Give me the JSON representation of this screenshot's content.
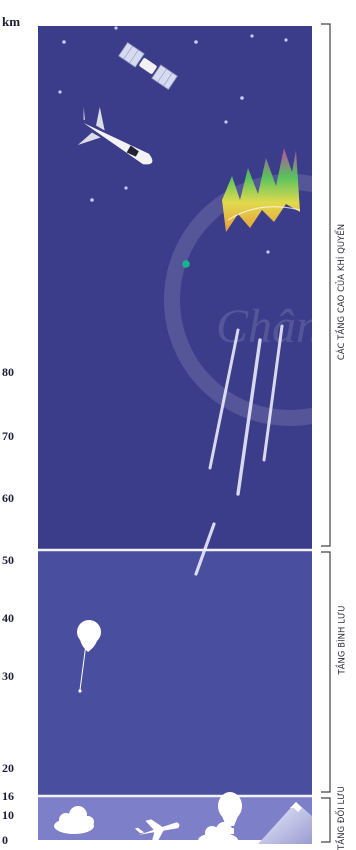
{
  "unit": "km",
  "ticks": [
    "0",
    "10",
    "16",
    "20",
    "30",
    "40",
    "50",
    "60",
    "70",
    "80"
  ],
  "layers": {
    "upper": "CÁC TẦNG CAO CỦA KHÍ QUYỂN",
    "stratosphere": "TẦNG BÌNH LƯU",
    "troposphere": "TẦNG ĐỐI LƯU"
  },
  "watermark": "Chân",
  "colors": {
    "upper_layer": "#3b3d8a",
    "stratosphere": "#4a4e9e",
    "troposphere": "#7d80c8",
    "boundary_line": "#f2f2ff",
    "bracket": "#444444"
  }
}
